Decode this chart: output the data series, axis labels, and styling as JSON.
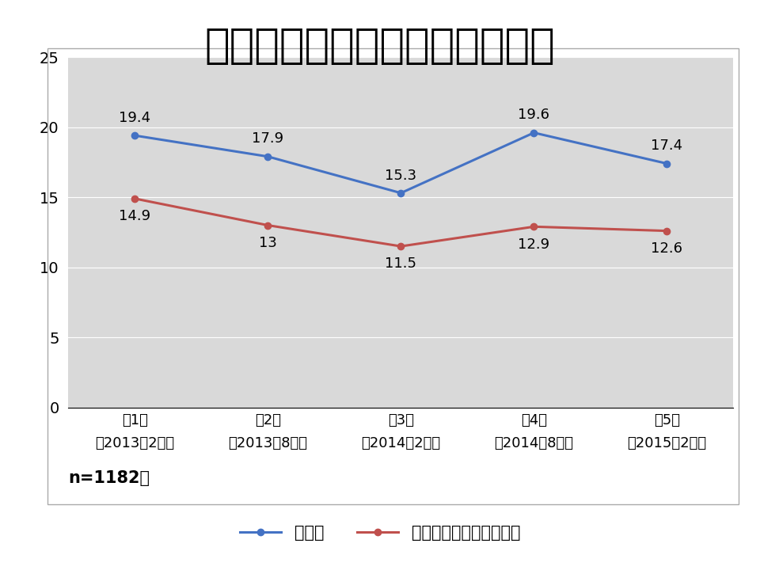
{
  "title": "食品を買うことをためらう産地",
  "x_labels_line1": [
    "第1回",
    "第2回",
    "第3回",
    "第4回",
    "第5回"
  ],
  "x_labels_line2": [
    "（2013年2月）",
    "（2013年8月）",
    "（2014年2月）",
    "（2014年8月）",
    "（2015年2月）"
  ],
  "series": [
    {
      "name": "福島県",
      "values": [
        19.4,
        17.9,
        15.3,
        19.6,
        17.4
      ],
      "color": "#4472C4"
    },
    {
      "name": "被災地を中心とした東北",
      "values": [
        14.9,
        13.0,
        11.5,
        12.9,
        12.6
      ],
      "color": "#C0504D"
    }
  ],
  "ylim": [
    0,
    25
  ],
  "yticks": [
    0,
    5,
    10,
    15,
    20,
    25
  ],
  "note": "n=1182人",
  "bg_color": "#D9D9D9",
  "outer_bg_color": "#FFFFFF",
  "title_fontsize": 38,
  "tick_fontsize": 14,
  "note_fontsize": 15,
  "legend_fontsize": 15,
  "data_label_fontsize": 13,
  "xlabel_fontsize": 13
}
